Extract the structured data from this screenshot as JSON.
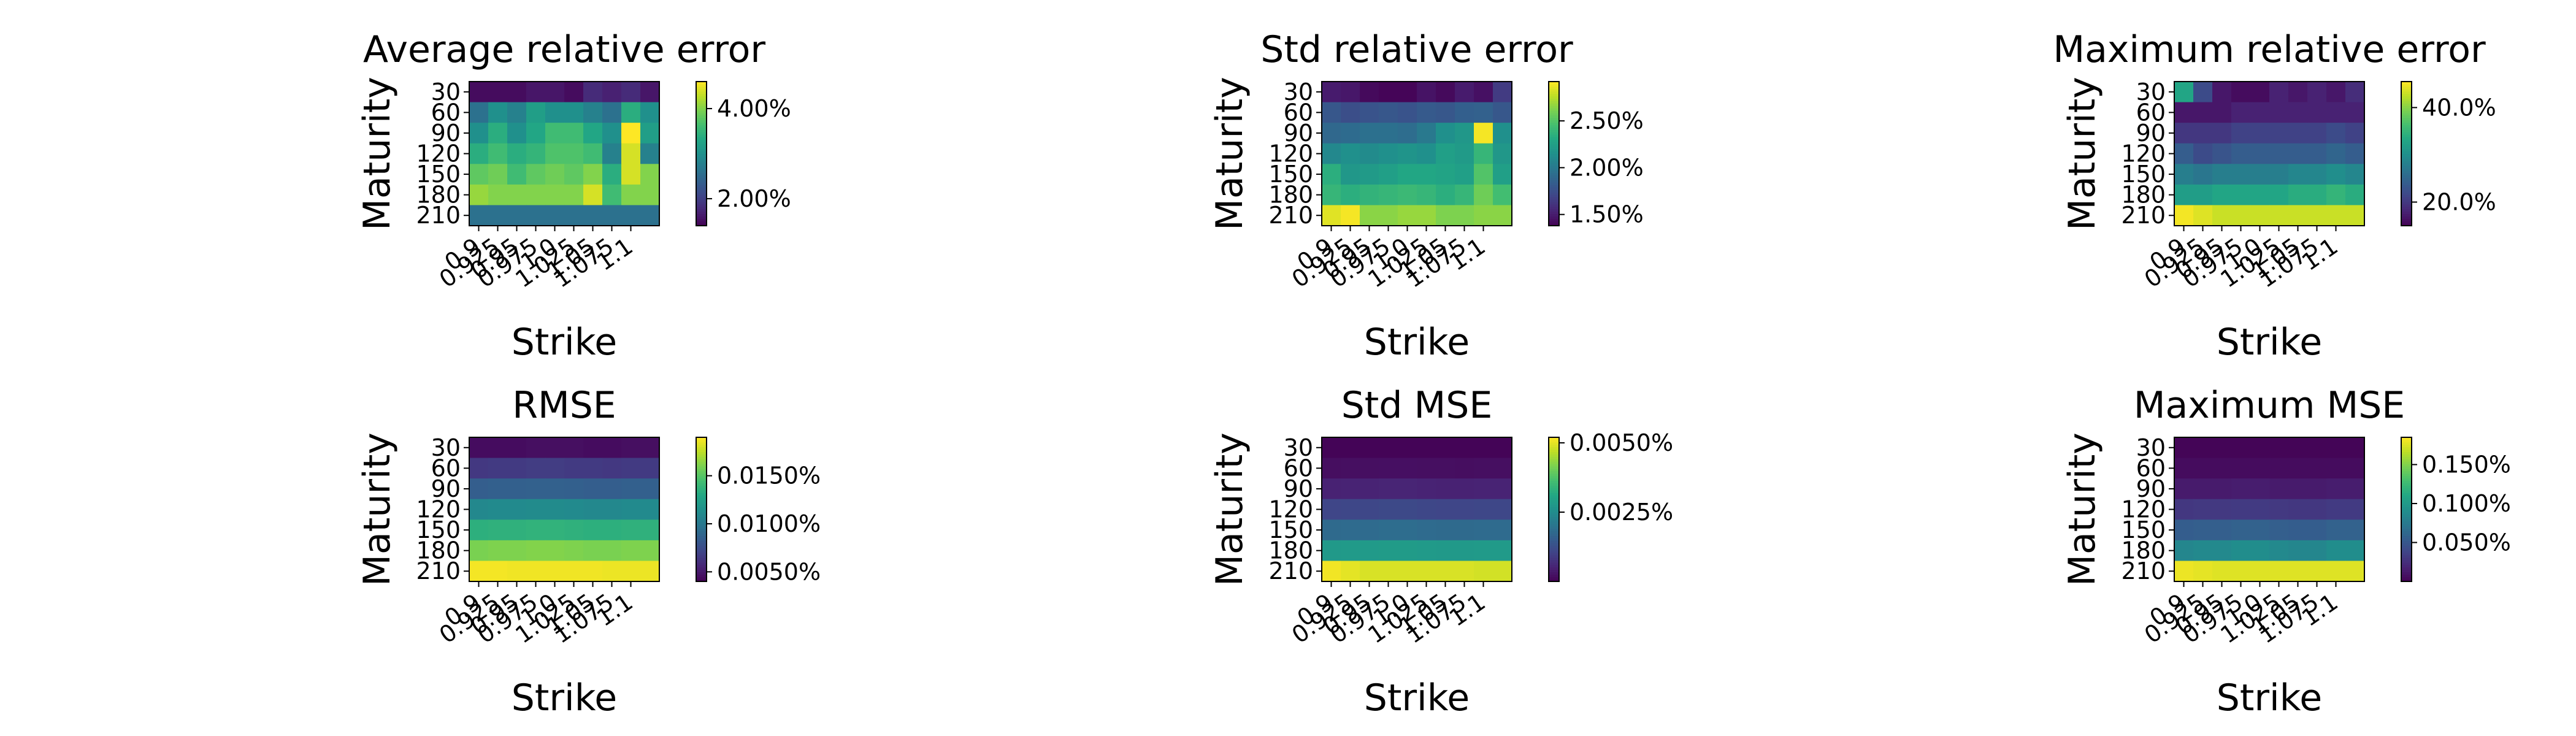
{
  "colormap": "viridis",
  "chart_data": [
    {
      "type": "heatmap",
      "title": "Average relative error",
      "xlabel": "Strike",
      "ylabel": "Maturity",
      "x_ticks": [
        "0.9",
        "0.925",
        "0.95",
        "0.975",
        "1.0",
        "1.025",
        "1.05",
        "1.075",
        "1.1"
      ],
      "y_ticks": [
        "30",
        "60",
        "90",
        "120",
        "150",
        "180",
        "210"
      ],
      "colorbar_ticks": [
        {
          "label": "2.00%",
          "value": 0.02
        },
        {
          "label": "4.00%",
          "value": 0.04
        }
      ],
      "zlim": [
        0.014,
        0.046
      ],
      "values": [
        [
          0.015,
          0.015,
          0.015,
          0.016,
          0.016,
          0.015,
          0.018,
          0.017,
          0.018,
          0.016
        ],
        [
          0.026,
          0.03,
          0.028,
          0.032,
          0.03,
          0.03,
          0.028,
          0.026,
          0.034,
          0.03
        ],
        [
          0.03,
          0.034,
          0.03,
          0.033,
          0.036,
          0.036,
          0.033,
          0.03,
          0.046,
          0.032
        ],
        [
          0.034,
          0.036,
          0.034,
          0.035,
          0.037,
          0.037,
          0.036,
          0.028,
          0.044,
          0.028
        ],
        [
          0.038,
          0.039,
          0.036,
          0.038,
          0.039,
          0.038,
          0.04,
          0.034,
          0.044,
          0.04
        ],
        [
          0.041,
          0.04,
          0.04,
          0.04,
          0.04,
          0.04,
          0.044,
          0.036,
          0.04,
          0.04
        ],
        [
          0.026,
          0.026,
          0.026,
          0.026,
          0.026,
          0.026,
          0.026,
          0.026,
          0.026,
          0.026
        ]
      ]
    },
    {
      "type": "heatmap",
      "title": "Std relative error",
      "xlabel": "Strike",
      "ylabel": "Maturity",
      "x_ticks": [
        "0.9",
        "0.925",
        "0.95",
        "0.975",
        "1.0",
        "1.025",
        "1.05",
        "1.075",
        "1.1"
      ],
      "y_ticks": [
        "30",
        "60",
        "90",
        "120",
        "150",
        "180",
        "210"
      ],
      "colorbar_ticks": [
        {
          "label": "1.50%",
          "value": 0.015
        },
        {
          "label": "2.00%",
          "value": 0.02
        },
        {
          "label": "2.50%",
          "value": 0.025
        }
      ],
      "zlim": [
        0.0138,
        0.0292
      ],
      "values": [
        [
          0.015,
          0.0148,
          0.0142,
          0.014,
          0.014,
          0.0146,
          0.0142,
          0.015,
          0.0145,
          0.0165
        ],
        [
          0.018,
          0.0175,
          0.0178,
          0.018,
          0.0178,
          0.0182,
          0.018,
          0.0185,
          0.0186,
          0.018
        ],
        [
          0.019,
          0.0192,
          0.0195,
          0.0195,
          0.0193,
          0.02,
          0.0215,
          0.022,
          0.029,
          0.0215
        ],
        [
          0.021,
          0.0215,
          0.0212,
          0.0215,
          0.0218,
          0.0215,
          0.0225,
          0.0222,
          0.024,
          0.022
        ],
        [
          0.0235,
          0.022,
          0.0222,
          0.0225,
          0.023,
          0.023,
          0.0228,
          0.0225,
          0.025,
          0.0225
        ],
        [
          0.024,
          0.0235,
          0.0238,
          0.024,
          0.0242,
          0.024,
          0.0235,
          0.024,
          0.0258,
          0.0245
        ],
        [
          0.0285,
          0.029,
          0.0265,
          0.0265,
          0.0268,
          0.0268,
          0.0262,
          0.0262,
          0.0265,
          0.0265
        ]
      ]
    },
    {
      "type": "heatmap",
      "title": "Maximum relative error",
      "xlabel": "Strike",
      "ylabel": "Maturity",
      "x_ticks": [
        "0.9",
        "0.925",
        "0.95",
        "0.975",
        "1.0",
        "1.025",
        "1.05",
        "1.075",
        "1.1"
      ],
      "y_ticks": [
        "30",
        "60",
        "90",
        "120",
        "150",
        "180",
        "210"
      ],
      "colorbar_ticks": [
        {
          "label": "20.0%",
          "value": 0.2
        },
        {
          "label": "40.0%",
          "value": 0.4
        }
      ],
      "zlim": [
        0.15,
        0.455
      ],
      "values": [
        [
          0.33,
          0.22,
          0.17,
          0.16,
          0.16,
          0.18,
          0.17,
          0.18,
          0.17,
          0.19
        ],
        [
          0.17,
          0.17,
          0.17,
          0.18,
          0.18,
          0.18,
          0.18,
          0.18,
          0.18,
          0.18
        ],
        [
          0.2,
          0.2,
          0.2,
          0.21,
          0.21,
          0.21,
          0.21,
          0.21,
          0.22,
          0.21
        ],
        [
          0.24,
          0.22,
          0.23,
          0.24,
          0.24,
          0.24,
          0.24,
          0.24,
          0.25,
          0.24
        ],
        [
          0.28,
          0.27,
          0.28,
          0.28,
          0.28,
          0.28,
          0.29,
          0.29,
          0.3,
          0.29
        ],
        [
          0.32,
          0.32,
          0.33,
          0.33,
          0.33,
          0.33,
          0.34,
          0.34,
          0.35,
          0.34
        ],
        [
          0.45,
          0.44,
          0.43,
          0.43,
          0.43,
          0.43,
          0.43,
          0.43,
          0.43,
          0.43
        ]
      ]
    },
    {
      "type": "heatmap",
      "title": "RMSE",
      "xlabel": "Strike",
      "ylabel": "Maturity",
      "x_ticks": [
        "0.9",
        "0.925",
        "0.95",
        "0.975",
        "1.0",
        "1.025",
        "1.05",
        "1.075",
        "1.1"
      ],
      "y_ticks": [
        "30",
        "60",
        "90",
        "120",
        "150",
        "180",
        "210"
      ],
      "colorbar_ticks": [
        {
          "label": "0.0050%",
          "value": 5e-05
        },
        {
          "label": "0.0100%",
          "value": 0.0001
        },
        {
          "label": "0.0150%",
          "value": 0.00015
        }
      ],
      "zlim": [
        4e-05,
        0.00019
      ],
      "values": [
        [
          4.5e-05,
          4.5e-05,
          4.5e-05,
          4.6e-05,
          4.6e-05,
          4.6e-05,
          4.5e-05,
          4.5e-05,
          4.6e-05,
          4.6e-05
        ],
        [
          6.5e-05,
          6.6e-05,
          6.6e-05,
          6.7e-05,
          6.7e-05,
          6.6e-05,
          6.6e-05,
          6.5e-05,
          6.6e-05,
          6.6e-05
        ],
        [
          8.5e-05,
          8.6e-05,
          8.6e-05,
          8.7e-05,
          8.7e-05,
          8.6e-05,
          8.5e-05,
          8.5e-05,
          8.6e-05,
          8.6e-05
        ],
        [
          0.00011,
          0.000111,
          0.000111,
          0.000112,
          0.000112,
          0.000111,
          0.00011,
          0.00011,
          0.000111,
          0.000111
        ],
        [
          0.000135,
          0.000136,
          0.000136,
          0.000137,
          0.000137,
          0.000136,
          0.000135,
          0.000135,
          0.000136,
          0.000136
        ],
        [
          0.00016,
          0.000161,
          0.000161,
          0.000162,
          0.000162,
          0.000161,
          0.00016,
          0.00016,
          0.000161,
          0.000161
        ],
        [
          0.000188,
          0.000188,
          0.000187,
          0.000187,
          0.000187,
          0.000187,
          0.000187,
          0.000186,
          0.000186,
          0.000186
        ]
      ]
    },
    {
      "type": "heatmap",
      "title": "Std MSE",
      "xlabel": "Strike",
      "ylabel": "Maturity",
      "x_ticks": [
        "0.9",
        "0.925",
        "0.95",
        "0.975",
        "1.0",
        "1.025",
        "1.05",
        "1.075",
        "1.1"
      ],
      "y_ticks": [
        "30",
        "60",
        "90",
        "120",
        "150",
        "180",
        "210"
      ],
      "colorbar_ticks": [
        {
          "label": "0.0025%",
          "value": 2.5e-05
        },
        {
          "label": "0.0050%",
          "value": 5e-05
        }
      ],
      "zlim": [
        0.0,
        5.2e-05
      ],
      "values": [
        [
          5e-07,
          5e-07,
          5e-07,
          5e-07,
          5e-07,
          5e-07,
          5e-07,
          5e-07,
          5e-07,
          5e-07
        ],
        [
          2e-06,
          2.1e-06,
          2.1e-06,
          2.2e-06,
          2.2e-06,
          2.1e-06,
          2.1e-06,
          2e-06,
          2.1e-06,
          2.1e-06
        ],
        [
          5e-06,
          5.2e-06,
          5.2e-06,
          5.5e-06,
          5.5e-06,
          5.2e-06,
          5e-06,
          5e-06,
          5.2e-06,
          5.2e-06
        ],
        [
          1.1e-05,
          1.12e-05,
          1.12e-05,
          1.15e-05,
          1.15e-05,
          1.12e-05,
          1.1e-05,
          1.1e-05,
          1.12e-05,
          1.12e-05
        ],
        [
          1.8e-05,
          1.82e-05,
          1.82e-05,
          1.85e-05,
          1.85e-05,
          1.82e-05,
          1.8e-05,
          1.8e-05,
          1.82e-05,
          1.82e-05
        ],
        [
          2.8e-05,
          2.82e-05,
          2.82e-05,
          2.85e-05,
          2.85e-05,
          2.82e-05,
          2.8e-05,
          2.8e-05,
          2.82e-05,
          2.82e-05
        ],
        [
          5.1e-05,
          5e-05,
          4.9e-05,
          4.9e-05,
          4.9e-05,
          4.9e-05,
          4.9e-05,
          4.9e-05,
          4.85e-05,
          4.85e-05
        ]
      ]
    },
    {
      "type": "heatmap",
      "title": "Maximum MSE",
      "xlabel": "Strike",
      "ylabel": "Maturity",
      "x_ticks": [
        "0.9",
        "0.925",
        "0.95",
        "0.975",
        "1.0",
        "1.025",
        "1.05",
        "1.075",
        "1.1"
      ],
      "y_ticks": [
        "30",
        "60",
        "90",
        "120",
        "150",
        "180",
        "210"
      ],
      "colorbar_ticks": [
        {
          "label": "0.050%",
          "value": 0.0005
        },
        {
          "label": "0.100%",
          "value": 0.001
        },
        {
          "label": "0.150%",
          "value": 0.0015
        }
      ],
      "zlim": [
        0.0,
        0.00185
      ],
      "values": [
        [
          2e-05,
          2e-05,
          2e-05,
          2e-05,
          2e-05,
          2e-05,
          2e-05,
          2e-05,
          2e-05,
          2e-05
        ],
        [
          6e-05,
          6e-05,
          6e-05,
          6e-05,
          6e-05,
          6e-05,
          6e-05,
          6e-05,
          6e-05,
          6e-05
        ],
        [
          0.00014,
          0.00014,
          0.00014,
          0.00015,
          0.00015,
          0.00014,
          0.00014,
          0.00014,
          0.00015,
          0.00015
        ],
        [
          0.0003,
          0.00031,
          0.00031,
          0.00032,
          0.00032,
          0.00031,
          0.0003,
          0.0003,
          0.00032,
          0.00032
        ],
        [
          0.00055,
          0.00056,
          0.00056,
          0.00058,
          0.00058,
          0.00056,
          0.00055,
          0.00055,
          0.00058,
          0.00058
        ],
        [
          0.00085,
          0.00087,
          0.00087,
          0.0009,
          0.0009,
          0.00087,
          0.00085,
          0.00085,
          0.0009,
          0.0009
        ],
        [
          0.0018,
          0.00178,
          0.00176,
          0.00176,
          0.00176,
          0.00176,
          0.00176,
          0.00176,
          0.00176,
          0.00176
        ]
      ]
    }
  ]
}
